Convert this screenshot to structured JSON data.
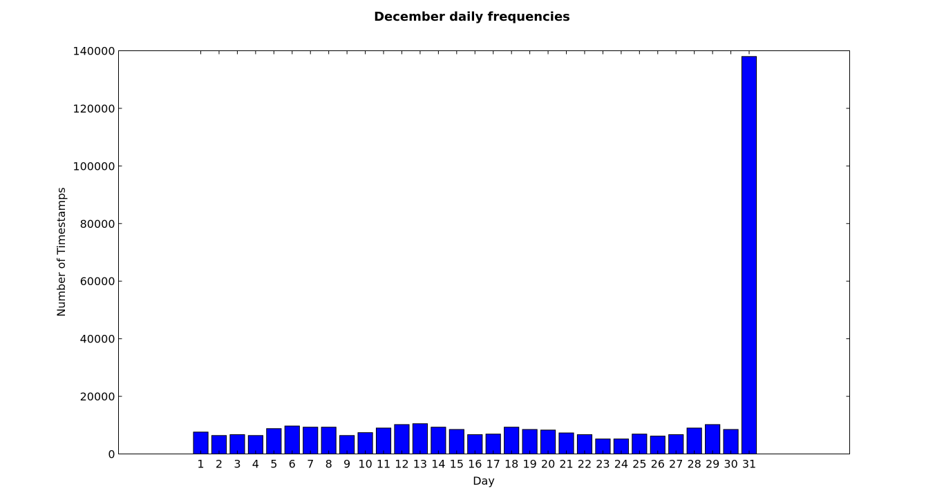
{
  "chart_data": {
    "type": "bar",
    "title": "December daily frequencies",
    "xlabel": "Day",
    "ylabel": "Number of Timestamps",
    "categories": [
      "1",
      "2",
      "3",
      "4",
      "5",
      "6",
      "7",
      "8",
      "9",
      "10",
      "11",
      "12",
      "13",
      "14",
      "15",
      "16",
      "17",
      "18",
      "19",
      "20",
      "21",
      "22",
      "23",
      "24",
      "25",
      "26",
      "27",
      "28",
      "29",
      "30",
      "31"
    ],
    "values": [
      7600,
      6400,
      6700,
      6400,
      8800,
      9700,
      9300,
      9300,
      6400,
      7400,
      9000,
      10200,
      10500,
      9300,
      8500,
      6700,
      6900,
      9300,
      8500,
      8300,
      7300,
      6700,
      5200,
      5200,
      6900,
      6200,
      6700,
      9000,
      10200,
      8500,
      138000
    ],
    "yticks": [
      "0",
      "20000",
      "40000",
      "60000",
      "80000",
      "100000",
      "120000",
      "140000"
    ],
    "ylim": [
      0,
      140000
    ],
    "xlim": [
      -4.5,
      35.5
    ],
    "bar_color": "#0000ff",
    "grid": false
  }
}
